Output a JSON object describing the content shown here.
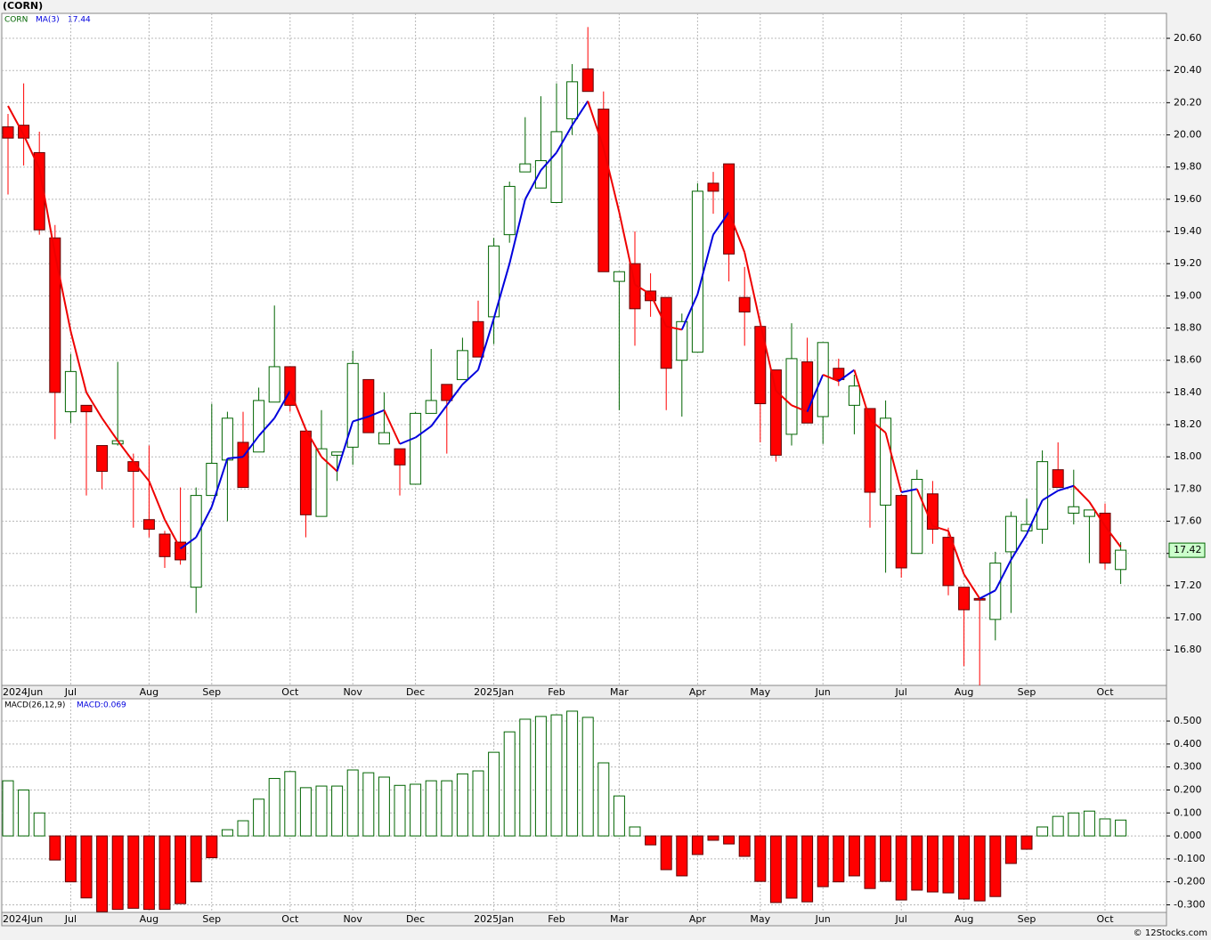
{
  "chart_data": [
    {
      "type": "candlestick",
      "title": "(CORN)",
      "symbol": "CORN",
      "categories": [
        "2024Jun",
        null,
        null,
        null,
        "Jul",
        null,
        null,
        null,
        null,
        "Aug",
        null,
        null,
        null,
        "Sep",
        null,
        null,
        null,
        null,
        "Oct",
        null,
        null,
        null,
        "Nov",
        null,
        null,
        null,
        "Dec",
        null,
        null,
        null,
        null,
        "2025Jan",
        null,
        null,
        null,
        "Feb",
        null,
        null,
        null,
        "Mar",
        null,
        null,
        null,
        null,
        "Apr",
        null,
        null,
        null,
        "May",
        null,
        null,
        null,
        "Jun",
        null,
        null,
        null,
        null,
        "Jul",
        null,
        null,
        null,
        "Aug",
        null,
        null,
        null,
        "Sep",
        null,
        null,
        null,
        null,
        "Oct",
        null
      ],
      "open": [
        20.05,
        20.06,
        19.89,
        19.36,
        18.28,
        18.32,
        18.07,
        18.08,
        17.97,
        17.61,
        17.52,
        17.47,
        17.19,
        17.76,
        17.98,
        18.09,
        18.03,
        18.34,
        18.56,
        18.16,
        17.63,
        18.01,
        18.06,
        18.48,
        18.08,
        18.05,
        17.83,
        18.27,
        18.45,
        18.48,
        18.84,
        18.87,
        19.38,
        19.77,
        19.67,
        19.58,
        20.1,
        20.41,
        20.16,
        19.09,
        19.2,
        19.03,
        18.99,
        18.6,
        18.65,
        19.7,
        19.82,
        18.99,
        18.81,
        18.54,
        18.14,
        18.59,
        18.25,
        18.55,
        18.32,
        18.3,
        17.7,
        17.76,
        17.4,
        17.77,
        17.5,
        17.19,
        17.12,
        16.99,
        17.41,
        17.54,
        17.55,
        17.92,
        17.65,
        17.63,
        17.65,
        17.3
      ],
      "high": [
        20.13,
        20.32,
        20.02,
        19.44,
        18.64,
        18.32,
        18.07,
        18.59,
        18.02,
        18.07,
        17.54,
        17.81,
        17.81,
        18.33,
        18.28,
        18.28,
        18.43,
        18.94,
        18.56,
        18.16,
        18.29,
        18.03,
        18.66,
        18.48,
        18.4,
        18.05,
        18.28,
        18.67,
        18.45,
        18.74,
        18.97,
        19.36,
        19.71,
        20.11,
        20.24,
        20.32,
        20.44,
        20.67,
        20.27,
        19.15,
        19.4,
        19.14,
        18.99,
        18.89,
        19.7,
        19.77,
        19.82,
        19.18,
        18.81,
        18.54,
        18.83,
        18.74,
        18.71,
        18.61,
        18.51,
        18.3,
        18.35,
        17.77,
        17.92,
        17.85,
        17.56,
        17.19,
        17.12,
        17.41,
        17.66,
        17.74,
        18.04,
        18.09,
        17.92,
        17.67,
        17.71,
        17.47
      ],
      "low": [
        19.63,
        19.81,
        19.38,
        18.11,
        18.21,
        17.76,
        17.8,
        18.07,
        17.56,
        17.5,
        17.31,
        17.33,
        17.03,
        17.76,
        17.6,
        17.81,
        18.03,
        18.34,
        18.28,
        17.5,
        17.63,
        17.85,
        17.95,
        18.15,
        18.08,
        17.76,
        17.83,
        18.27,
        18.02,
        18.48,
        18.62,
        18.7,
        19.33,
        19.77,
        19.67,
        19.58,
        20.0,
        20.27,
        19.15,
        18.29,
        18.69,
        18.87,
        18.29,
        18.25,
        18.65,
        19.51,
        19.09,
        18.69,
        18.09,
        17.97,
        18.07,
        18.21,
        18.08,
        18.44,
        18.14,
        17.56,
        17.28,
        17.25,
        17.4,
        17.46,
        17.14,
        16.7,
        16.58,
        16.86,
        17.03,
        17.54,
        17.46,
        17.81,
        17.58,
        17.34,
        17.3,
        17.21
      ],
      "close": [
        19.98,
        19.98,
        19.41,
        18.4,
        18.53,
        18.28,
        17.91,
        18.1,
        17.91,
        17.55,
        17.38,
        17.36,
        17.76,
        17.96,
        18.24,
        17.81,
        18.35,
        18.56,
        18.32,
        17.64,
        18.05,
        18.03,
        18.58,
        18.15,
        18.15,
        17.95,
        18.27,
        18.35,
        18.35,
        18.66,
        18.62,
        19.31,
        19.68,
        19.82,
        19.84,
        20.02,
        20.33,
        20.27,
        19.15,
        19.15,
        18.92,
        18.97,
        18.55,
        18.84,
        19.65,
        19.65,
        19.26,
        18.9,
        18.33,
        18.01,
        18.61,
        18.21,
        18.71,
        18.48,
        18.44,
        17.78,
        18.24,
        17.31,
        17.86,
        17.55,
        17.2,
        17.05,
        17.11,
        17.34,
        17.63,
        17.58,
        17.97,
        17.81,
        17.69,
        17.67,
        17.34,
        17.42
      ],
      "up_color": "#006400",
      "down_color": "#ff0000",
      "series": [
        {
          "name": "MA(3)",
          "up_color": "#0000dd",
          "down_color": "#ee0000",
          "values": [
            20.18,
            20.0,
            19.79,
            19.26,
            18.78,
            18.4,
            18.24,
            18.1,
            17.97,
            17.85,
            17.61,
            17.43,
            17.5,
            17.69,
            17.99,
            18.0,
            18.13,
            18.24,
            18.41,
            18.17,
            18.0,
            17.91,
            18.22,
            18.25,
            18.29,
            18.08,
            18.12,
            18.19,
            18.32,
            18.45,
            18.54,
            18.86,
            19.2,
            19.6,
            19.78,
            19.89,
            20.06,
            20.21,
            19.92,
            19.52,
            19.07,
            19.01,
            18.81,
            18.79,
            19.01,
            19.38,
            19.52,
            19.27,
            18.83,
            18.41,
            18.32,
            18.28,
            18.51,
            18.47,
            18.54,
            18.23,
            18.15,
            17.78,
            17.8,
            17.57,
            17.54,
            17.27,
            17.12,
            17.17,
            17.36,
            17.52,
            17.73,
            17.79,
            17.82,
            17.72,
            17.57,
            17.44
          ]
        }
      ],
      "ylim": [
        16.58,
        20.755
      ],
      "yticks": [
        {
          "value": 16.8,
          "label": "16.80"
        },
        {
          "value": 17.0,
          "label": "17.00"
        },
        {
          "value": 17.2,
          "label": "17.20"
        },
        {
          "value": 17.4,
          "label": "17.40"
        },
        {
          "value": 17.6,
          "label": "17.60"
        },
        {
          "value": 17.8,
          "label": "17.80"
        },
        {
          "value": 18.0,
          "label": "18.00"
        },
        {
          "value": 18.2,
          "label": "18.20"
        },
        {
          "value": 18.4,
          "label": "18.40"
        },
        {
          "value": 18.6,
          "label": "18.60"
        },
        {
          "value": 18.8,
          "label": "18.80"
        },
        {
          "value": 19.0,
          "label": "19.00"
        },
        {
          "value": 19.2,
          "label": "19.20"
        },
        {
          "value": 19.4,
          "label": "19.40"
        },
        {
          "value": 19.6,
          "label": "19.60"
        },
        {
          "value": 19.8,
          "label": "19.80"
        },
        {
          "value": 20.0,
          "label": "20.00"
        },
        {
          "value": 20.2,
          "label": "20.20"
        },
        {
          "value": 20.4,
          "label": "20.40"
        },
        {
          "value": 20.6,
          "label": "20.60"
        }
      ],
      "grid": true
    },
    {
      "type": "bar",
      "title": "MACD(26,12,9)",
      "legend_label": "MACD:0.069",
      "categories": [
        "2024Jun",
        null,
        null,
        null,
        "Jul",
        null,
        null,
        null,
        null,
        "Aug",
        null,
        null,
        null,
        "Sep",
        null,
        null,
        null,
        null,
        "Oct",
        null,
        null,
        null,
        "Nov",
        null,
        null,
        null,
        "Dec",
        null,
        null,
        null,
        null,
        "2025Jan",
        null,
        null,
        null,
        "Feb",
        null,
        null,
        null,
        "Mar",
        null,
        null,
        null,
        null,
        "Apr",
        null,
        null,
        null,
        "May",
        null,
        null,
        null,
        "Jun",
        null,
        null,
        null,
        null,
        "Jul",
        null,
        null,
        null,
        "Aug",
        null,
        null,
        null,
        "Sep",
        null,
        null,
        null,
        null,
        "Oct",
        null
      ],
      "values": [
        0.24,
        0.2,
        0.1,
        -0.105,
        -0.2,
        -0.27,
        -0.33,
        -0.32,
        -0.315,
        -0.32,
        -0.32,
        -0.295,
        -0.2,
        -0.095,
        0.027,
        0.066,
        0.16,
        0.25,
        0.28,
        0.21,
        0.217,
        0.217,
        0.287,
        0.275,
        0.256,
        0.22,
        0.225,
        0.24,
        0.24,
        0.27,
        0.283,
        0.364,
        0.453,
        0.508,
        0.52,
        0.527,
        0.543,
        0.516,
        0.318,
        0.174,
        0.039,
        -0.039,
        -0.147,
        -0.174,
        -0.081,
        -0.019,
        -0.035,
        -0.089,
        -0.198,
        -0.29,
        -0.271,
        -0.287,
        -0.221,
        -0.2,
        -0.174,
        -0.229,
        -0.198,
        -0.279,
        -0.236,
        -0.244,
        -0.248,
        -0.275,
        -0.283,
        -0.264,
        -0.12,
        -0.058,
        0.039,
        0.085,
        0.1,
        0.108,
        0.074,
        0.069
      ],
      "up_color": "#006400",
      "down_color": "#ff0000",
      "ylim": [
        -0.333,
        0.597
      ],
      "yticks": [
        {
          "value": -0.3,
          "label": "-0.300"
        },
        {
          "value": -0.2,
          "label": "-0.200"
        },
        {
          "value": -0.1,
          "label": "-0.100"
        },
        {
          "value": 0,
          "label": "0.000"
        },
        {
          "value": 0.1,
          "label": "0.100"
        },
        {
          "value": 0.2,
          "label": "0.200"
        },
        {
          "value": 0.3,
          "label": "0.300"
        },
        {
          "value": 0.4,
          "label": "0.400"
        },
        {
          "value": 0.5,
          "label": "0.500"
        }
      ],
      "grid": true
    }
  ],
  "footer": "© 12Stocks.com"
}
